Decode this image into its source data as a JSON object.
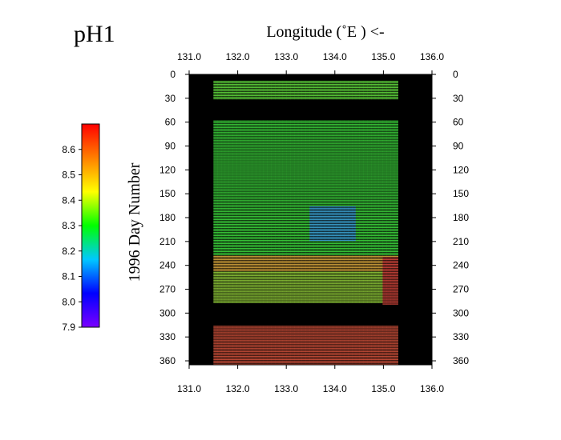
{
  "chart_data": {
    "type": "heatmap",
    "title": "pH1",
    "xlabel": "Longitude (˚E ) <-",
    "ylabel": "1996 Day Number",
    "xlim": [
      131.0,
      136.0
    ],
    "ylim": [
      0,
      365
    ],
    "y_inverted": true,
    "x_ticks": [
      "131.0",
      "132.0",
      "133.0",
      "134.0",
      "135.0",
      "136.0"
    ],
    "y_ticks": [
      "0",
      "30",
      "60",
      "90",
      "120",
      "150",
      "180",
      "210",
      "240",
      "270",
      "300",
      "330",
      "360"
    ],
    "colorbar": {
      "range": [
        7.9,
        8.7
      ],
      "ticks": [
        "7.9",
        "8.0",
        "8.1",
        "8.2",
        "8.3",
        "8.4",
        "8.5",
        "8.6"
      ],
      "colors": [
        "#7a00ff",
        "#0000ff",
        "#00c8ff",
        "#00ff00",
        "#ffff00",
        "#ff8000",
        "#ff0000"
      ]
    },
    "data_extent": {
      "longitude": [
        131.5,
        135.3
      ],
      "day_ranges": [
        [
          7,
          32
        ],
        [
          58,
          290
        ],
        [
          316,
          366
        ]
      ],
      "gap_days": [
        [
          32,
          58
        ],
        [
          290,
          316
        ]
      ]
    },
    "value_regions": [
      {
        "days": [
          7,
          32
        ],
        "ph": 8.33
      },
      {
        "days": [
          58,
          228
        ],
        "ph": 8.3
      },
      {
        "days": [
          165,
          210
        ],
        "lon": [
          133.5,
          134.4
        ],
        "ph": 8.15
      },
      {
        "days": [
          228,
          248
        ],
        "ph": 8.52
      },
      {
        "days": [
          248,
          288
        ],
        "ph": 8.38
      },
      {
        "days": [
          316,
          366
        ],
        "ph": 8.66
      },
      {
        "days": [
          230,
          290
        ],
        "lon": [
          135.0,
          135.3
        ],
        "ph": 8.68
      }
    ],
    "background_color": "#000000",
    "nan_color": "#000000"
  }
}
